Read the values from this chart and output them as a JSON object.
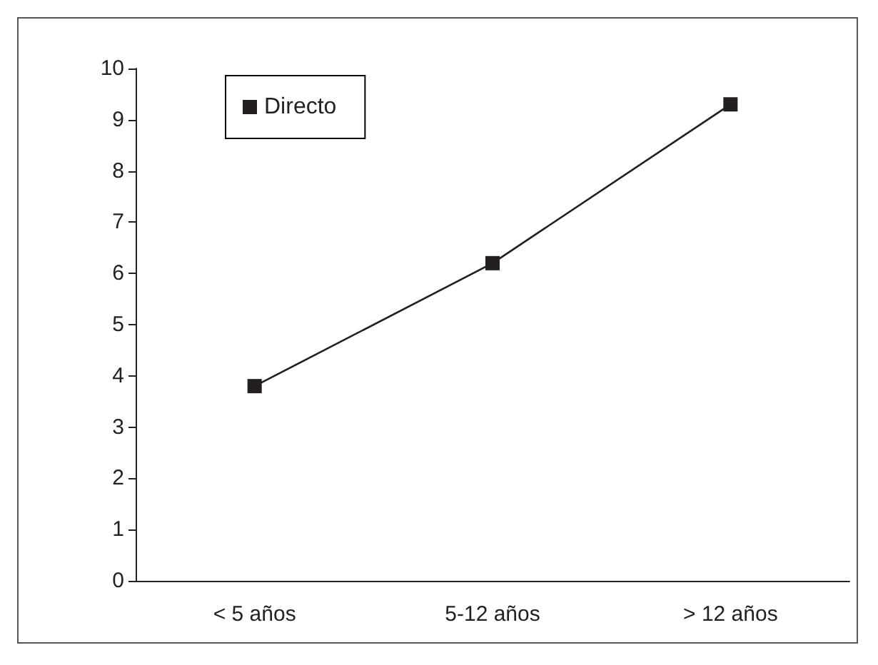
{
  "chart_data": {
    "type": "line",
    "categories": [
      "< 5 años",
      "5-12 años",
      "> 12 años"
    ],
    "series": [
      {
        "name": "Directo",
        "color": "#231f20",
        "values": [
          3.8,
          6.2,
          9.3
        ]
      }
    ],
    "ylim": [
      0,
      10
    ],
    "yticks": [
      0,
      1,
      2,
      3,
      4,
      5,
      6,
      7,
      8,
      9,
      10
    ],
    "grid": false,
    "legend": "top left",
    "marker": "square",
    "line_style": "solid"
  }
}
